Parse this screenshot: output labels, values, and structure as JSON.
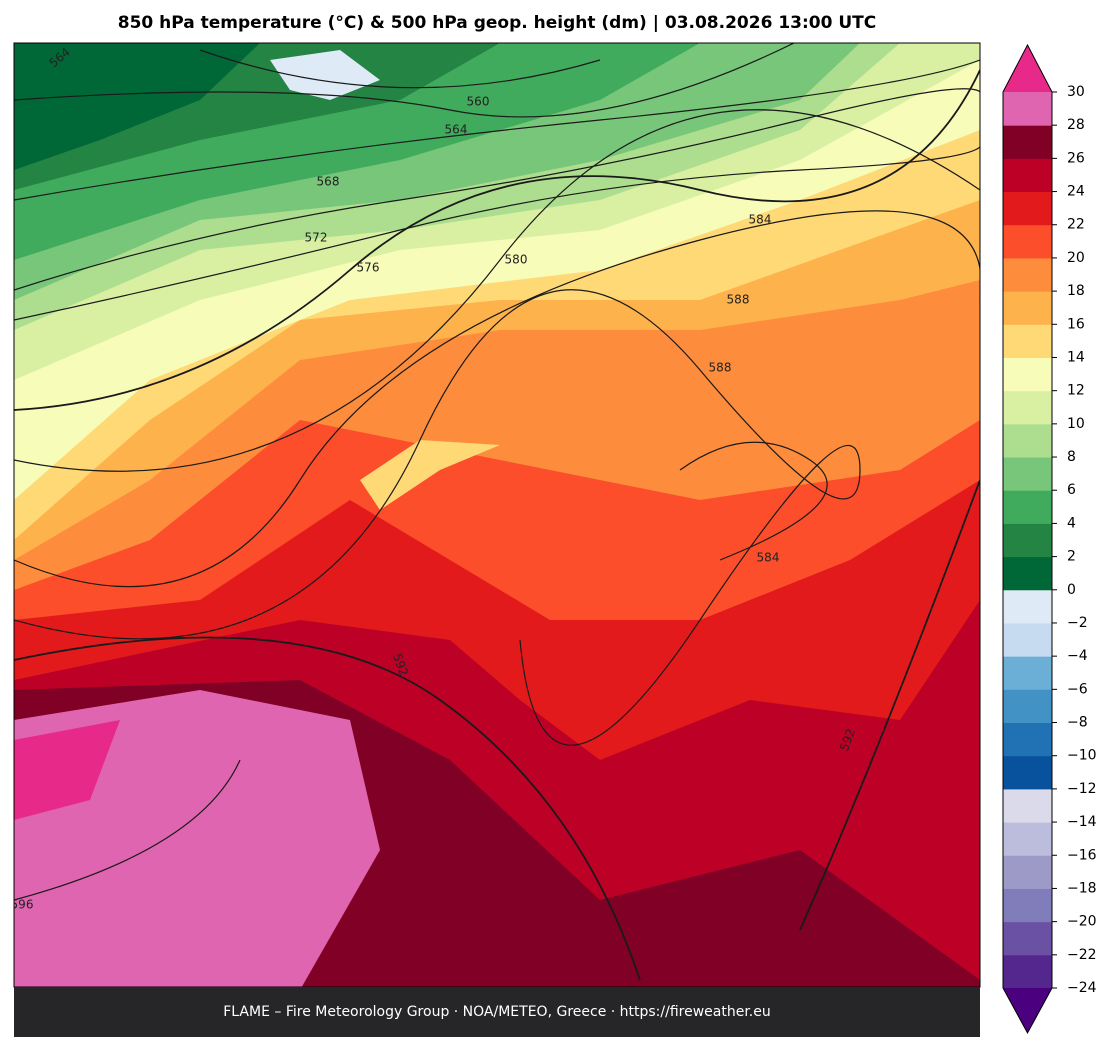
{
  "header": {
    "title": "850 hPa temperature (°C) & 500 hPa geop. height (dm)  |  03.08.2026 13:00 UTC"
  },
  "contour_labels": [
    "564",
    "560",
    "564",
    "568",
    "572",
    "576",
    "580",
    "584",
    "588",
    "588",
    "584",
    "592",
    "592",
    "596"
  ],
  "colorbar": {
    "ticks": [
      {
        "value": -24,
        "label": "−24"
      },
      {
        "value": -22,
        "label": "−22"
      },
      {
        "value": -20,
        "label": "−20"
      },
      {
        "value": -18,
        "label": "−18"
      },
      {
        "value": -16,
        "label": "−16"
      },
      {
        "value": -14,
        "label": "−14"
      },
      {
        "value": -12,
        "label": "−12"
      },
      {
        "value": -10,
        "label": "−10"
      },
      {
        "value": -8,
        "label": "−8"
      },
      {
        "value": -6,
        "label": "−6"
      },
      {
        "value": -4,
        "label": "−4"
      },
      {
        "value": -2,
        "label": "−2"
      },
      0,
      2,
      4,
      6,
      8,
      10,
      12,
      14,
      16,
      18,
      20,
      22,
      24,
      26,
      28,
      30
    ],
    "colors": [
      "#54278f",
      "#6a51a3",
      "#807dba",
      "#9e9ac8",
      "#bcbddc",
      "#dadaeb",
      "#08519c",
      "#2171b5",
      "#4292c6",
      "#6baed6",
      "#c6dbef",
      "#deebf7",
      "#006837",
      "#238443",
      "#41ab5d",
      "#78c679",
      "#addd8e",
      "#d9f0a3",
      "#f7fcb9",
      "#fed976",
      "#feb24c",
      "#fd8d3c",
      "#fc4e2a",
      "#e31a1c",
      "#bd0026",
      "#800026",
      "#df65b0"
    ],
    "under_color": "#4a007f",
    "over_color": "#e7298a"
  },
  "footer": {
    "text": "FLAME – Fire Meteorology Group · NOA/METEO, Greece · https://fireweather.eu"
  }
}
